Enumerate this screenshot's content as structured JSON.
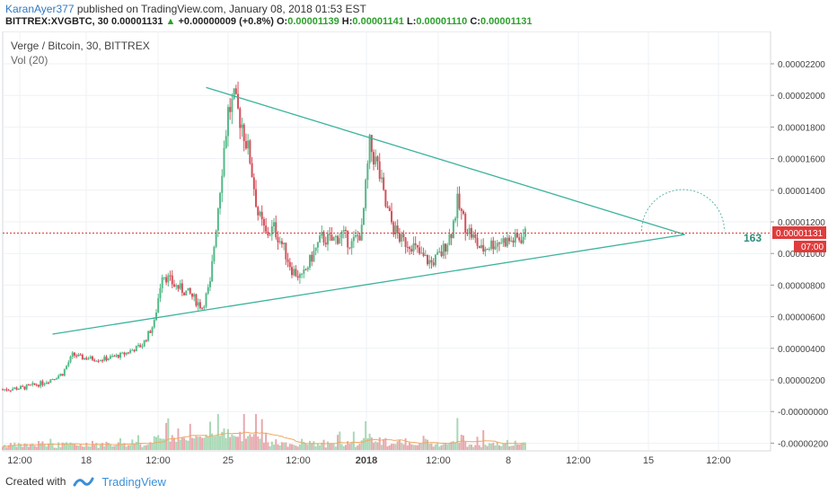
{
  "header": {
    "author": "KaranAyer377",
    "published_text": " published on TradingView.com, January 08, 2018 01:53 EST",
    "symbol": "BITTREX:XVGBTC, 30",
    "last": "0.00001131",
    "change": "+0.00000009 (+0.8%)",
    "o_label": "O:",
    "o_value": "0.00001139",
    "h_label": "H:",
    "h_value": "0.00001141",
    "l_label": "L:",
    "l_value": "0.00001110",
    "c_label": "C:",
    "c_value": "0.00001131"
  },
  "legend": {
    "title": "Verge / Bitcoin, 30, BITTREX",
    "indicator": "Vol (20)"
  },
  "price_tag": {
    "value": "0.00001131",
    "countdown": "07:00"
  },
  "annotation": "163",
  "footer": {
    "created_with": "Created with",
    "brand": "TradingView"
  },
  "colors": {
    "up": "#53b987",
    "down": "#d4505b",
    "trend": "#3cb39c",
    "price_line": "#e03c3c",
    "arc": "#5fb8a8",
    "grid": "#eef1f4",
    "vol_up": "#a8d8b5",
    "vol_down": "#e8a9ae",
    "vol_ma": "#f0a860"
  },
  "chart_data": {
    "type": "candlestick",
    "title": "Verge / Bitcoin, 30, BITTREX",
    "x_ticks": [
      "12:00",
      "18",
      "12:00",
      "25",
      "12:00",
      "2018",
      "12:00",
      "8",
      "12:00",
      "15",
      "12:00"
    ],
    "y_ticks": [
      "0.00002200",
      "0.00002000",
      "0.00001800",
      "0.00001600",
      "0.00001400",
      "0.00001200",
      "0.00001000",
      "0.00000800",
      "0.00000600",
      "0.00000400",
      "0.00000200",
      "-0.00000000",
      "-0.00000200"
    ],
    "price_path": [
      [
        0,
        1.4
      ],
      [
        1,
        1.5
      ],
      [
        2,
        1.8
      ],
      [
        3,
        2.4
      ],
      [
        3.5,
        3.6
      ],
      [
        4,
        3.4
      ],
      [
        5,
        3.3
      ],
      [
        6,
        3.6
      ],
      [
        7,
        4.2
      ],
      [
        7.6,
        5.6
      ],
      [
        8,
        8.8
      ],
      [
        8.6,
        8.0
      ],
      [
        9.4,
        7.4
      ],
      [
        10,
        6.6
      ],
      [
        10.4,
        8.0
      ],
      [
        10.7,
        11.8
      ],
      [
        11,
        15.5
      ],
      [
        11.3,
        19.0
      ],
      [
        11.6,
        19.6
      ],
      [
        12,
        18.2
      ],
      [
        12.4,
        16.0
      ],
      [
        12.8,
        12.5
      ],
      [
        13.2,
        11.2
      ],
      [
        13.6,
        11.6
      ],
      [
        14,
        10.6
      ],
      [
        14.5,
        9.0
      ],
      [
        15,
        8.4
      ],
      [
        15.5,
        9.8
      ],
      [
        16,
        11.0
      ],
      [
        16.5,
        10.8
      ],
      [
        17,
        11.2
      ],
      [
        17.5,
        10.6
      ],
      [
        18,
        11.4
      ],
      [
        18.4,
        16.8
      ],
      [
        18.8,
        15.5
      ],
      [
        19.2,
        13.0
      ],
      [
        19.6,
        11.6
      ],
      [
        20,
        10.8
      ],
      [
        20.5,
        10.6
      ],
      [
        21,
        9.8
      ],
      [
        21.5,
        9.4
      ],
      [
        22,
        10.0
      ],
      [
        22.5,
        11.4
      ],
      [
        22.8,
        13.2
      ],
      [
        23.2,
        11.8
      ],
      [
        23.6,
        11.0
      ],
      [
        24,
        10.2
      ],
      [
        24.5,
        10.6
      ],
      [
        25,
        10.8
      ],
      [
        25.5,
        10.8
      ],
      [
        26,
        11.0
      ],
      [
        26.3,
        11.3
      ]
    ],
    "trendlines": [
      {
        "name": "upper",
        "from": [
          10.2,
          20.5
        ],
        "to": [
          34.2,
          11.2
        ]
      },
      {
        "name": "lower",
        "from": [
          2.5,
          4.9
        ],
        "to": [
          34.2,
          11.2
        ]
      }
    ],
    "last_price": 11.31,
    "units": "1e-6 BTC"
  }
}
